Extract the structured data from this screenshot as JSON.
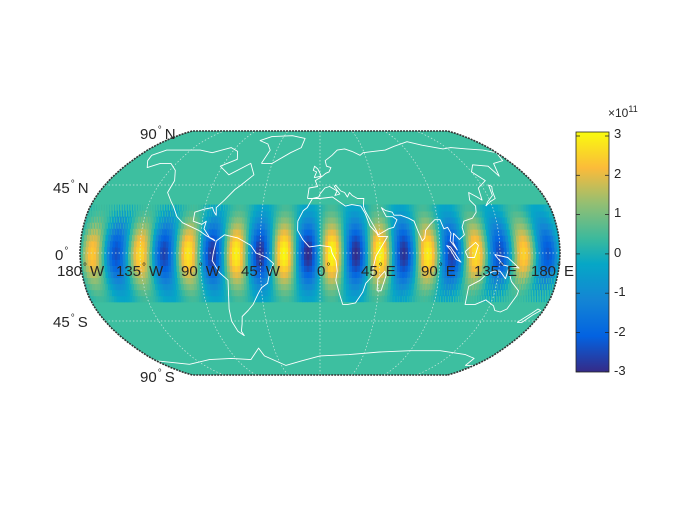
{
  "map": {
    "projection": "robinson",
    "background_color": "#3dbfa0",
    "coastline_color": "#ffffff",
    "frame_color": "#333333",
    "field": {
      "type": "wave-pattern",
      "amplitude": 300000000000.0,
      "zonal_wavenumber": 10,
      "orientation": "bands of alternating sign along the equator, fading toward the poles",
      "min": -300000000000.0,
      "max": 300000000000.0
    }
  },
  "lat_labels": [
    {
      "value": "90",
      "hemi": "N"
    },
    {
      "value": "45",
      "hemi": "N"
    },
    {
      "value": "0",
      "hemi": ""
    },
    {
      "value": "45",
      "hemi": "S"
    },
    {
      "value": "90",
      "hemi": "S"
    }
  ],
  "lon_labels": [
    {
      "value": "180",
      "hemi": "W"
    },
    {
      "value": "135",
      "hemi": "W"
    },
    {
      "value": "90",
      "hemi": "W"
    },
    {
      "value": "45",
      "hemi": "W"
    },
    {
      "value": "0",
      "hemi": ""
    },
    {
      "value": "45",
      "hemi": "E"
    },
    {
      "value": "90",
      "hemi": "E"
    },
    {
      "value": "135",
      "hemi": "E"
    },
    {
      "value": "180",
      "hemi": "E"
    }
  ],
  "colorbar": {
    "colormap": "parula",
    "min": -3,
    "max": 3,
    "ticks": [
      "3",
      "2",
      "1",
      "0",
      "-1",
      "-2",
      "-3"
    ],
    "exponent_base": "×10",
    "exponent": "11"
  }
}
